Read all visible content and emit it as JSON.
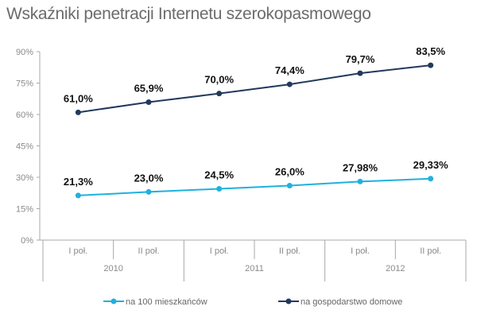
{
  "chart_data": {
    "type": "line",
    "title": "Wskaźniki penetracji Internetu szerokopasmowego",
    "categories": [
      "I poł.",
      "II poł.",
      "I poł.",
      "II poł.",
      "I poł.",
      "II poł."
    ],
    "groups": [
      {
        "label": "2010",
        "span": 2
      },
      {
        "label": "2011",
        "span": 2
      },
      {
        "label": "2012",
        "span": 2
      }
    ],
    "ylim": [
      0,
      90
    ],
    "yticks": [
      "0%",
      "15%",
      "30%",
      "45%",
      "60%",
      "75%",
      "90%"
    ],
    "ytick_values": [
      0,
      15,
      30,
      45,
      60,
      75,
      90
    ],
    "grid": false,
    "legend": "bottom",
    "series": [
      {
        "name": "na 100 mieszkańców",
        "color": "#1fb1de",
        "values": [
          21.3,
          23.0,
          24.5,
          26.0,
          27.98,
          29.33
        ],
        "labels": [
          "21,3%",
          "23,0%",
          "24,5%",
          "26,0%",
          "27,98%",
          "29,33%"
        ]
      },
      {
        "name": "na gospodarstwo domowe",
        "color": "#22395c",
        "values": [
          61.0,
          65.9,
          70.0,
          74.4,
          79.7,
          83.5
        ],
        "labels": [
          "61,0%",
          "65,9%",
          "70,0%",
          "74,4%",
          "79,7%",
          "83,5%"
        ]
      }
    ]
  }
}
